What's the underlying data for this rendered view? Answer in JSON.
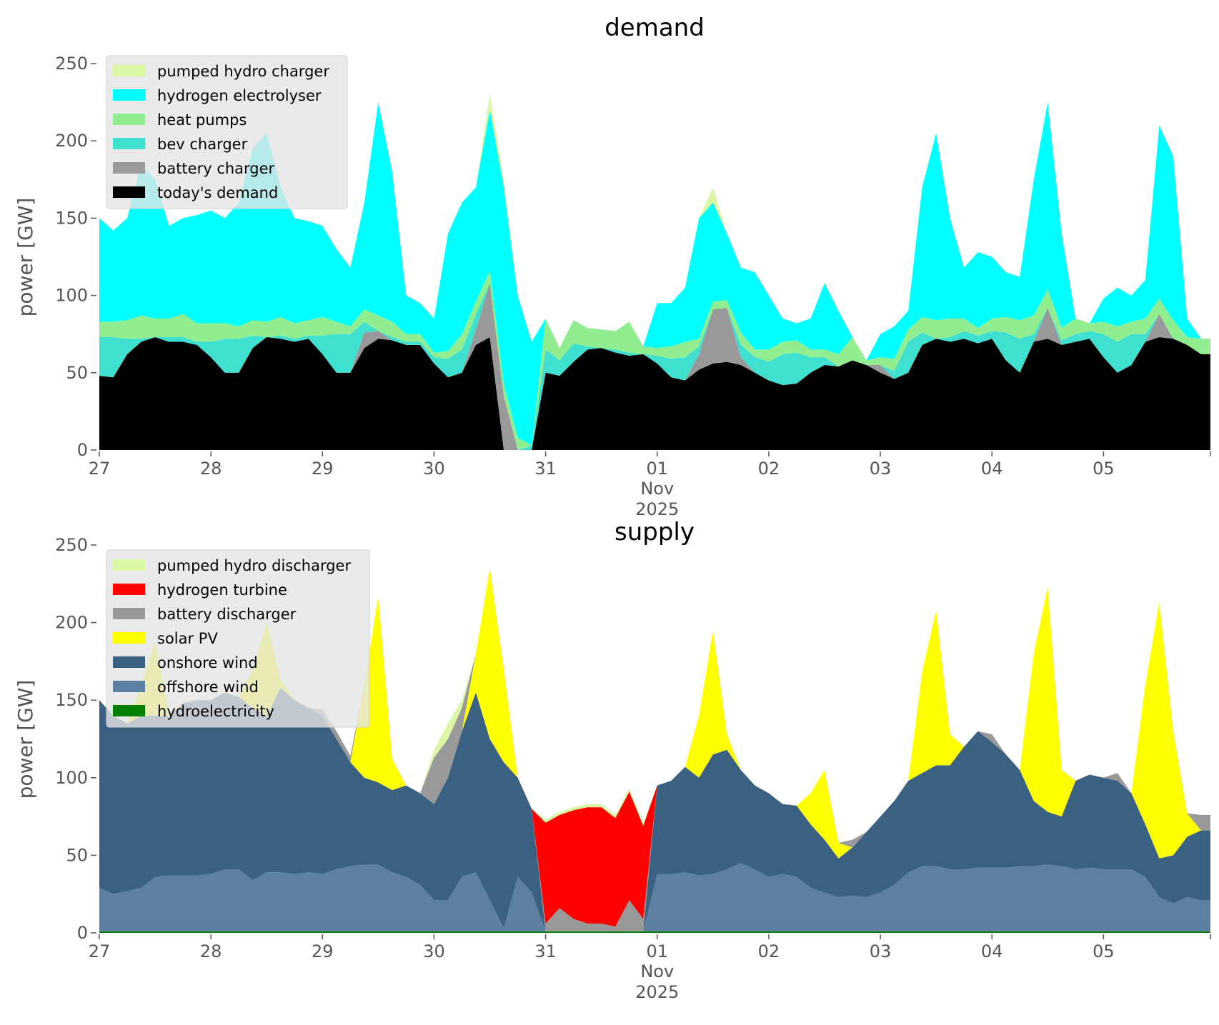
{
  "chart_data": [
    {
      "type": "area",
      "stacked": true,
      "title": "demand",
      "ylabel": "power [GW]",
      "xlabel": "",
      "ylim": [
        0,
        250
      ],
      "yticks": [
        "0",
        "50",
        "100",
        "150",
        "200",
        "250"
      ],
      "xticks": [
        "27",
        "28",
        "29",
        "30",
        "31",
        "01",
        "02",
        "03",
        "04",
        "05"
      ],
      "xtick_sub": [
        "Nov",
        "2025"
      ],
      "x_unit": "hours since 27 Oct 2025 00:00, 3-hourly",
      "x_range_hours": [
        0,
        239
      ],
      "legend_position": "top-left",
      "series": [
        {
          "name": "today's demand",
          "color": "#000000",
          "values": [
            48,
            47,
            62,
            70,
            73,
            70,
            70,
            68,
            60,
            50,
            50,
            66,
            73,
            72,
            70,
            72,
            62,
            50,
            50,
            66,
            72,
            71,
            68,
            68,
            56,
            47,
            50,
            68,
            73,
            0,
            0,
            0,
            50,
            48,
            57,
            65,
            66,
            63,
            61,
            62,
            56,
            47,
            45,
            52,
            56,
            57,
            55,
            50,
            45,
            42,
            43,
            50,
            55,
            54,
            58,
            55,
            50,
            46,
            50,
            68,
            72,
            70,
            72,
            69,
            72,
            58,
            50,
            70,
            72,
            68,
            70,
            72,
            60,
            50,
            55,
            70,
            73,
            72,
            68,
            62
          ]
        },
        {
          "name": "battery charger",
          "color": "#999999",
          "values": [
            0,
            0,
            0,
            0,
            0,
            0,
            0,
            0,
            0,
            0,
            0,
            0,
            0,
            0,
            0,
            0,
            0,
            0,
            0,
            10,
            5,
            0,
            0,
            0,
            0,
            0,
            0,
            10,
            35,
            35,
            0,
            0,
            0,
            0,
            0,
            0,
            0,
            0,
            0,
            0,
            0,
            0,
            0,
            10,
            35,
            35,
            5,
            0,
            0,
            0,
            0,
            0,
            0,
            0,
            0,
            0,
            5,
            0,
            0,
            0,
            0,
            0,
            0,
            0,
            0,
            0,
            0,
            0,
            20,
            0,
            0,
            0,
            0,
            0,
            0,
            0,
            15,
            0,
            0,
            0
          ]
        },
        {
          "name": "bev charger",
          "color": "#40e0d0",
          "values": [
            25,
            26,
            10,
            2,
            0,
            3,
            3,
            2,
            10,
            22,
            22,
            8,
            0,
            2,
            2,
            2,
            12,
            25,
            25,
            7,
            0,
            2,
            2,
            2,
            4,
            12,
            15,
            10,
            0,
            0,
            0,
            3,
            15,
            10,
            12,
            2,
            0,
            2,
            2,
            0,
            5,
            12,
            15,
            5,
            0,
            0,
            8,
            10,
            12,
            20,
            20,
            10,
            5,
            0,
            0,
            0,
            0,
            5,
            20,
            8,
            0,
            3,
            5,
            5,
            5,
            18,
            22,
            5,
            0,
            3,
            5,
            5,
            15,
            20,
            20,
            5,
            0,
            0,
            0,
            0
          ]
        },
        {
          "name": "heat pumps",
          "color": "#90ee90",
          "values": [
            10,
            10,
            12,
            15,
            12,
            12,
            15,
            12,
            12,
            10,
            8,
            10,
            10,
            12,
            10,
            10,
            12,
            8,
            5,
            8,
            10,
            10,
            5,
            5,
            3,
            5,
            10,
            8,
            8,
            8,
            8,
            0,
            20,
            8,
            15,
            12,
            12,
            12,
            20,
            5,
            5,
            8,
            10,
            5,
            5,
            5,
            8,
            5,
            8,
            8,
            8,
            5,
            5,
            8,
            15,
            3,
            5,
            8,
            8,
            10,
            12,
            12,
            8,
            5,
            8,
            10,
            12,
            12,
            12,
            8,
            10,
            5,
            8,
            10,
            8,
            10,
            10,
            12,
            5,
            10
          ]
        },
        {
          "name": "hydrogen electrolyser",
          "color": "#00ffff",
          "values": [
            67,
            59,
            66,
            98,
            90,
            60,
            62,
            70,
            73,
            68,
            80,
            111,
            122,
            84,
            68,
            64,
            59,
            47,
            38,
            69,
            138,
            97,
            25,
            20,
            22,
            76,
            85,
            74,
            104,
            127,
            92,
            67,
            0,
            0,
            0,
            0,
            0,
            0,
            0,
            0,
            29,
            28,
            35,
            78,
            64,
            43,
            42,
            50,
            35,
            15,
            11,
            20,
            43,
            28,
            0,
            0,
            15,
            21,
            12,
            84,
            121,
            65,
            33,
            49,
            40,
            29,
            28,
            88,
            121,
            61,
            0,
            0,
            15,
            25,
            17,
            25,
            112,
            106,
            12,
            0
          ]
        },
        {
          "name": "pumped hydro charger",
          "color": "#d9f7a5",
          "values": [
            0,
            0,
            0,
            0,
            0,
            0,
            0,
            0,
            0,
            0,
            0,
            0,
            0,
            0,
            0,
            0,
            0,
            0,
            0,
            0,
            0,
            0,
            0,
            0,
            0,
            0,
            0,
            0,
            10,
            5,
            0,
            0,
            0,
            0,
            0,
            0,
            0,
            0,
            0,
            0,
            0,
            0,
            0,
            0,
            10,
            0,
            0,
            0,
            0,
            0,
            0,
            0,
            0,
            0,
            0,
            0,
            0,
            0,
            0,
            0,
            0,
            0,
            0,
            0,
            0,
            0,
            0,
            0,
            0,
            0,
            0,
            0,
            0,
            0,
            0,
            0,
            0,
            0,
            0,
            0
          ]
        }
      ]
    },
    {
      "type": "area",
      "stacked": true,
      "title": "supply",
      "ylabel": "power [GW]",
      "xlabel": "",
      "ylim": [
        0,
        250
      ],
      "yticks": [
        "0",
        "50",
        "100",
        "150",
        "200",
        "250"
      ],
      "xticks": [
        "27",
        "28",
        "29",
        "30",
        "31",
        "01",
        "02",
        "03",
        "04",
        "05"
      ],
      "xtick_sub": [
        "Nov",
        "2025"
      ],
      "x_unit": "hours since 27 Oct 2025 00:00, 3-hourly",
      "x_range_hours": [
        0,
        239
      ],
      "legend_position": "top-left",
      "series": [
        {
          "name": "hydroelectricity",
          "color": "#008000",
          "values": [
            1,
            1,
            1,
            1,
            1,
            1,
            1,
            1,
            1,
            1,
            1,
            1,
            1,
            1,
            1,
            1,
            1,
            1,
            1,
            1,
            1,
            1,
            1,
            1,
            1,
            1,
            1,
            1,
            1,
            1,
            1,
            1,
            1,
            1,
            1,
            1,
            1,
            1,
            1,
            1,
            1,
            1,
            1,
            1,
            1,
            1,
            1,
            1,
            1,
            1,
            1,
            1,
            1,
            1,
            1,
            1,
            1,
            1,
            1,
            1,
            1,
            1,
            1,
            1,
            1,
            1,
            1,
            1,
            1,
            1,
            1,
            1,
            1,
            1,
            1,
            1,
            1,
            1,
            1,
            1
          ]
        },
        {
          "name": "offshore wind",
          "color": "#5b80a2",
          "values": [
            28,
            24,
            26,
            28,
            35,
            36,
            36,
            36,
            37,
            40,
            40,
            33,
            38,
            38,
            37,
            38,
            37,
            40,
            42,
            43,
            43,
            38,
            35,
            30,
            20,
            20,
            35,
            38,
            20,
            2,
            35,
            25,
            0,
            0,
            0,
            0,
            0,
            0,
            0,
            0,
            37,
            37,
            38,
            36,
            37,
            40,
            44,
            40,
            35,
            37,
            35,
            28,
            25,
            22,
            23,
            22,
            25,
            30,
            38,
            42,
            42,
            40,
            40,
            41,
            41,
            41,
            42,
            42,
            43,
            42,
            40,
            41,
            40,
            40,
            40,
            35,
            22,
            18,
            22,
            20
          ]
        },
        {
          "name": "onshore wind",
          "color": "#3b6182",
          "values": [
            121,
            115,
            108,
            111,
            104,
            103,
            111,
            113,
            112,
            114,
            111,
            111,
            101,
            119,
            112,
            106,
            102,
            84,
            67,
            56,
            53,
            53,
            59,
            59,
            62,
            79,
            94,
            116,
            104,
            107,
            64,
            54,
            0,
            0,
            0,
            0,
            0,
            0,
            0,
            0,
            57,
            60,
            68,
            63,
            77,
            77,
            60,
            54,
            54,
            45,
            46,
            41,
            34,
            25,
            31,
            42,
            49,
            54,
            59,
            60,
            65,
            67,
            79,
            88,
            81,
            73,
            62,
            42,
            34,
            32,
            57,
            60,
            59,
            57,
            49,
            34,
            25,
            31,
            39,
            45
          ]
        },
        {
          "name": "solar PV",
          "color": "#ffff00",
          "values": [
            0,
            0,
            0,
            20,
            48,
            2,
            0,
            0,
            0,
            0,
            0,
            25,
            60,
            5,
            0,
            0,
            0,
            0,
            0,
            60,
            120,
            20,
            0,
            0,
            0,
            0,
            0,
            25,
            110,
            60,
            0,
            0,
            0,
            0,
            0,
            0,
            0,
            0,
            0,
            0,
            0,
            0,
            0,
            40,
            80,
            10,
            0,
            0,
            0,
            0,
            0,
            20,
            45,
            10,
            0,
            0,
            0,
            0,
            0,
            65,
            100,
            20,
            0,
            0,
            0,
            0,
            0,
            95,
            145,
            30,
            0,
            0,
            0,
            0,
            0,
            90,
            165,
            80,
            15,
            0
          ]
        },
        {
          "name": "battery discharger",
          "color": "#999999",
          "values": [
            0,
            0,
            0,
            0,
            0,
            0,
            0,
            0,
            0,
            0,
            0,
            0,
            0,
            0,
            0,
            0,
            4,
            5,
            4,
            0,
            0,
            0,
            0,
            0,
            30,
            25,
            15,
            0,
            0,
            0,
            0,
            0,
            5,
            15,
            8,
            5,
            5,
            3,
            20,
            8,
            0,
            0,
            0,
            0,
            0,
            0,
            0,
            0,
            0,
            0,
            0,
            0,
            0,
            0,
            5,
            0,
            0,
            0,
            0,
            0,
            0,
            0,
            0,
            0,
            5,
            0,
            0,
            0,
            0,
            0,
            0,
            0,
            0,
            5,
            0,
            0,
            0,
            0,
            0,
            10
          ]
        },
        {
          "name": "hydrogen turbine",
          "color": "#ff0000",
          "values": [
            0,
            0,
            0,
            0,
            0,
            0,
            0,
            0,
            0,
            0,
            0,
            0,
            0,
            0,
            0,
            0,
            0,
            0,
            0,
            0,
            0,
            0,
            0,
            0,
            0,
            0,
            0,
            0,
            0,
            0,
            0,
            0,
            65,
            60,
            70,
            75,
            75,
            70,
            70,
            60,
            0,
            0,
            0,
            0,
            0,
            0,
            0,
            0,
            0,
            0,
            0,
            0,
            0,
            0,
            0,
            0,
            0,
            0,
            0,
            0,
            0,
            0,
            0,
            0,
            0,
            0,
            0,
            0,
            0,
            0,
            0,
            0,
            0,
            0,
            0,
            0,
            0,
            0,
            0,
            0
          ]
        },
        {
          "name": "pumped hydro discharger",
          "color": "#d9f7a5",
          "values": [
            0,
            0,
            0,
            0,
            0,
            0,
            0,
            0,
            0,
            0,
            0,
            0,
            0,
            0,
            0,
            0,
            0,
            0,
            0,
            0,
            0,
            0,
            0,
            0,
            5,
            10,
            5,
            0,
            0,
            0,
            0,
            0,
            2,
            2,
            2,
            2,
            2,
            2,
            2,
            2,
            0,
            0,
            0,
            0,
            0,
            0,
            0,
            0,
            0,
            0,
            0,
            0,
            0,
            0,
            0,
            0,
            0,
            0,
            0,
            0,
            0,
            0,
            0,
            0,
            0,
            0,
            0,
            0,
            0,
            0,
            0,
            0,
            0,
            0,
            0,
            0,
            0,
            0,
            0,
            0
          ]
        }
      ]
    }
  ]
}
